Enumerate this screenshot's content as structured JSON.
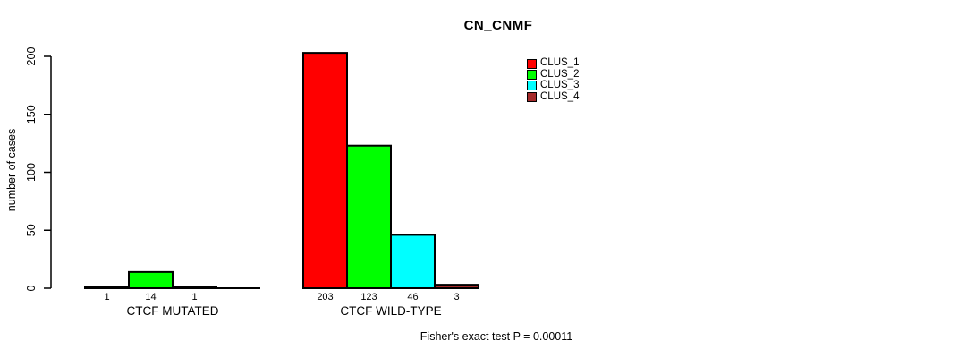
{
  "figure": {
    "background": "#FFFFFF",
    "text_color": "#000000"
  },
  "chart_data": {
    "type": "bar",
    "title": "CN_CNMF",
    "ylabel": "number of cases",
    "xlabel": "",
    "ylim": [
      0,
      200
    ],
    "yticks": [
      0,
      50,
      100,
      150,
      200
    ],
    "grid": false,
    "legend_position": "top-right",
    "categories": [
      "CTCF MUTATED",
      "CTCF WILD-TYPE"
    ],
    "series": [
      {
        "name": "CLUS_1",
        "color": "#FF0000",
        "values": [
          1,
          203
        ]
      },
      {
        "name": "CLUS_2",
        "color": "#00FF00",
        "values": [
          14,
          123
        ]
      },
      {
        "name": "CLUS_3",
        "color": "#00FFFF",
        "values": [
          1,
          46
        ]
      },
      {
        "name": "CLUS_4",
        "color": "#A52A2A",
        "values": [
          0,
          3
        ]
      }
    ],
    "bar_value_labels": [
      [
        "1",
        "14",
        "1",
        ""
      ],
      [
        "203",
        "123",
        "46",
        "3"
      ]
    ],
    "footer": "Fisher's exact test P = 0.00011"
  }
}
